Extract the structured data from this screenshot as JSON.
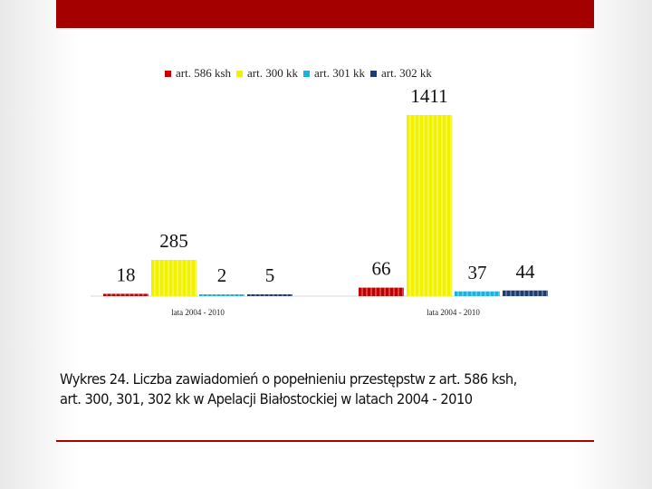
{
  "chart_data": {
    "type": "bar",
    "categories": [
      "lata 2004 - 2010",
      "lata 2004 - 2010"
    ],
    "series": [
      {
        "name": "art. 586 ksh",
        "color": "#c00000",
        "values": [
          18,
          66
        ]
      },
      {
        "name": "art. 300 kk",
        "color": "#f2f200",
        "values": [
          285,
          1411
        ]
      },
      {
        "name": "art. 301 kk",
        "color": "#1fb0e0",
        "values": [
          2,
          37
        ]
      },
      {
        "name": "art. 302 kk",
        "color": "#1f3b73",
        "values": [
          5,
          44
        ]
      }
    ],
    "legend_position": "top",
    "grid": false
  },
  "caption": "Wykres 24. Liczba zawiadomień o popełnieniu przestępstw z art. 586 ksh, art. 300, 301, 302 kk w Apelacji Białostockiej w latach 2004 - 2010",
  "colors": {
    "top_bar": "#a40000",
    "bottom_rule": "#b00000"
  }
}
